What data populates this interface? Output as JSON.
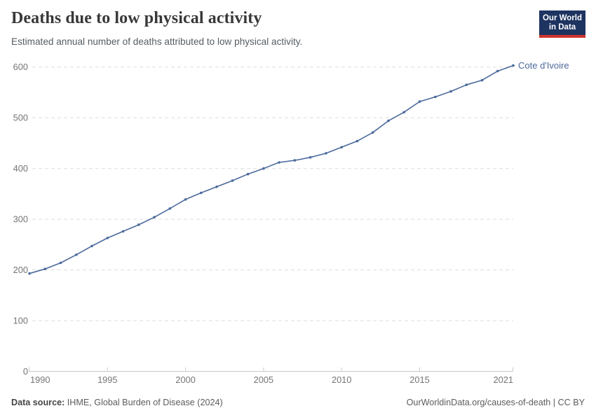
{
  "header": {
    "title": "Deaths due to low physical activity",
    "subtitle": "Estimated annual number of deaths attributed to low physical activity.",
    "logo": {
      "line1": "Our World",
      "line2": "in Data"
    }
  },
  "chart_data": {
    "type": "line",
    "title": "Deaths due to low physical activity",
    "subtitle": "Estimated annual number of deaths attributed to low physical activity.",
    "entity": "Cote d'Ivoire",
    "x": [
      1990,
      1991,
      1992,
      1993,
      1994,
      1995,
      1996,
      1997,
      1998,
      1999,
      2000,
      2001,
      2002,
      2003,
      2004,
      2005,
      2006,
      2007,
      2008,
      2009,
      2010,
      2011,
      2012,
      2013,
      2014,
      2015,
      2016,
      2017,
      2018,
      2019,
      2020,
      2021
    ],
    "values": [
      193,
      202,
      214,
      230,
      247,
      263,
      276,
      289,
      304,
      321,
      339,
      352,
      364,
      376,
      389,
      400,
      412,
      416,
      422,
      430,
      442,
      454,
      471,
      494,
      511,
      532,
      541,
      552,
      565,
      574,
      592,
      603
    ],
    "xlabel": "",
    "ylabel": "",
    "ylim": [
      0,
      600
    ],
    "yticks": [
      0,
      100,
      200,
      300,
      400,
      500,
      600
    ],
    "xticks": [
      1990,
      1995,
      2000,
      2005,
      2010,
      2015,
      2021
    ],
    "grid": "horizontal-dashed",
    "legend_position": "end-of-line-label"
  },
  "footer": {
    "source_label": "Data source:",
    "source_text": " IHME, Global Burden of Disease (2024)",
    "link_text": "OurWorldinData.org/causes-of-death",
    "separator": " | ",
    "license": "CC BY"
  },
  "colors": {
    "line": "#4C6A9C",
    "entity_label": "#4C6A9C",
    "grid": "#dddddd",
    "axis": "#c8c8c8",
    "tick": "#c8c8c8",
    "axis_label": "#757575",
    "logo_bg": "#1d3360",
    "logo_accent": "#d0342c"
  }
}
